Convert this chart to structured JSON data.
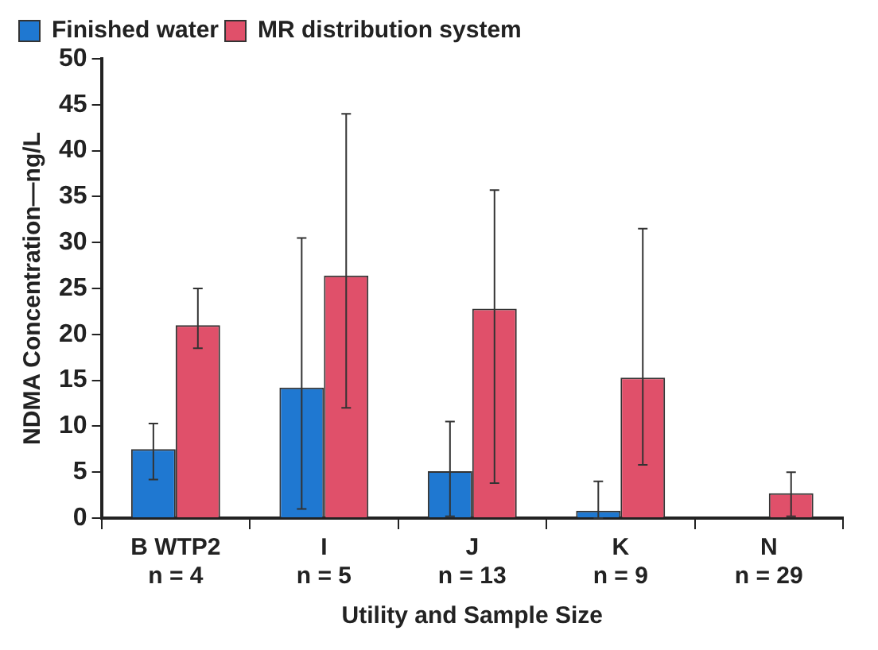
{
  "chart_data": {
    "type": "bar",
    "xlabel": "Utility and Sample Size",
    "ylabel": "NDMA Concentration—ng/L",
    "categories": [
      "B WTP2\nn = 4",
      "I\nn = 5",
      "J\nn = 13",
      "K\nn = 9",
      "N\nn = 29"
    ],
    "series": [
      {
        "name": "Finished water",
        "color": "#1f78d1",
        "values": [
          7.5,
          14.2,
          5.1,
          0.8,
          null
        ],
        "errors": [
          [
            4.2,
            10.3
          ],
          [
            1,
            30.5
          ],
          [
            0.2,
            10.5
          ],
          [
            0,
            4
          ],
          null
        ]
      },
      {
        "name": "MR distribution system",
        "color": "#e0506a",
        "values": [
          21,
          26.4,
          22.8,
          15.3,
          2.7
        ],
        "errors": [
          [
            18.5,
            25
          ],
          [
            12,
            44
          ],
          [
            3.8,
            35.7
          ],
          [
            5.8,
            31.5
          ],
          [
            0.2,
            5
          ]
        ]
      }
    ],
    "ylim": [
      0,
      50
    ],
    "yticks": [
      0,
      5,
      10,
      15,
      20,
      25,
      30,
      35,
      40,
      45,
      50
    ],
    "grid": false,
    "legend": "top left"
  }
}
